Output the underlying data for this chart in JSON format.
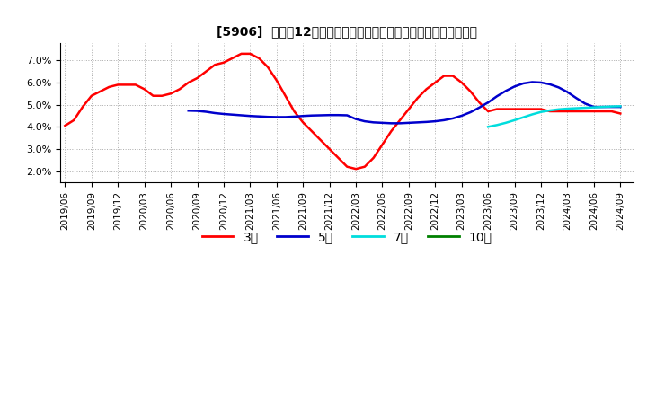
{
  "title": "[5906]  売上高12か月移動合計の対前年同期増減率の平均値の推移",
  "ylim": [
    0.015,
    0.078
  ],
  "yticks": [
    0.02,
    0.03,
    0.04,
    0.05,
    0.06,
    0.07
  ],
  "background_color": "#ffffff",
  "grid_color": "#aaaaaa",
  "series": {
    "3year": {
      "color": "#ff0000",
      "label": "3年",
      "x": [
        0,
        1,
        2,
        3,
        4,
        5,
        6,
        7,
        8,
        9,
        10,
        11,
        12,
        13,
        14,
        15,
        16,
        17,
        18,
        19,
        20,
        21,
        22,
        23,
        24,
        25,
        26,
        27,
        28,
        29,
        30,
        31,
        32,
        33,
        34,
        35,
        36,
        37,
        38,
        39,
        40,
        41,
        42,
        43,
        44,
        45,
        46,
        47,
        48,
        49,
        50,
        51,
        52,
        53,
        54,
        55,
        56,
        57,
        58,
        59,
        60,
        61,
        62,
        63
      ],
      "y": [
        0.0405,
        0.043,
        0.049,
        0.054,
        0.056,
        0.058,
        0.059,
        0.059,
        0.059,
        0.057,
        0.054,
        0.054,
        0.055,
        0.057,
        0.06,
        0.062,
        0.065,
        0.068,
        0.069,
        0.071,
        0.073,
        0.073,
        0.071,
        0.067,
        0.061,
        0.054,
        0.047,
        0.042,
        0.038,
        0.034,
        0.03,
        0.026,
        0.022,
        0.021,
        0.022,
        0.026,
        0.032,
        0.038,
        0.043,
        0.048,
        0.053,
        0.057,
        0.06,
        0.063,
        0.063,
        0.06,
        0.056,
        0.051,
        0.047,
        0.048,
        0.048,
        0.048,
        0.048,
        0.048,
        0.048,
        0.047,
        0.047,
        0.047,
        0.047,
        0.047,
        0.047,
        0.047,
        0.047,
        0.046
      ]
    },
    "5year": {
      "color": "#0000cc",
      "label": "5年",
      "x": [
        14,
        15,
        16,
        17,
        18,
        19,
        20,
        21,
        22,
        23,
        24,
        25,
        26,
        27,
        28,
        29,
        30,
        31,
        32,
        33,
        34,
        35,
        36,
        37,
        38,
        39,
        40,
        41,
        42,
        43,
        44,
        45,
        46,
        47,
        48,
        49,
        50,
        51,
        52,
        53,
        54,
        55,
        56,
        57,
        58,
        59,
        60,
        61,
        62,
        63
      ],
      "y": [
        0.0473,
        0.0472,
        0.0468,
        0.0462,
        0.0458,
        0.0455,
        0.0452,
        0.0449,
        0.0447,
        0.0445,
        0.0444,
        0.0444,
        0.0446,
        0.0449,
        0.0451,
        0.0452,
        0.0453,
        0.0453,
        0.0452,
        0.0435,
        0.0425,
        0.042,
        0.0418,
        0.0416,
        0.0416,
        0.0418,
        0.042,
        0.0422,
        0.0425,
        0.043,
        0.0438,
        0.045,
        0.0466,
        0.0487,
        0.051,
        0.0538,
        0.0562,
        0.0582,
        0.0596,
        0.0602,
        0.06,
        0.0592,
        0.0578,
        0.0557,
        0.053,
        0.0505,
        0.049,
        0.049,
        0.049,
        0.049
      ]
    },
    "7year": {
      "color": "#00dddd",
      "label": "7年",
      "x": [
        48,
        49,
        50,
        51,
        52,
        53,
        54,
        55,
        56,
        57,
        58,
        59,
        60,
        61,
        62,
        63
      ],
      "y": [
        0.04,
        0.0408,
        0.0418,
        0.043,
        0.0443,
        0.0456,
        0.0467,
        0.0474,
        0.0479,
        0.0482,
        0.0484,
        0.0486,
        0.0488,
        0.049,
        0.0492,
        0.0493
      ]
    },
    "10year": {
      "color": "#008000",
      "label": "10年",
      "x": [],
      "y": []
    }
  },
  "xtick_labels": [
    "2019/06",
    "2019/09",
    "2019/12",
    "2020/03",
    "2020/06",
    "2020/09",
    "2020/12",
    "2021/03",
    "2021/06",
    "2021/09",
    "2021/12",
    "2022/03",
    "2022/06",
    "2022/09",
    "2022/12",
    "2023/03",
    "2023/06",
    "2023/09",
    "2023/12",
    "2024/03",
    "2024/06",
    "2024/09"
  ],
  "xtick_positions": [
    0,
    3,
    6,
    9,
    12,
    15,
    18,
    21,
    24,
    27,
    30,
    33,
    36,
    39,
    42,
    45,
    48,
    51,
    54,
    57,
    60,
    63
  ],
  "legend_labels": [
    "3年",
    "5年",
    "7年",
    "10年"
  ],
  "legend_colors": [
    "#ff0000",
    "#0000cc",
    "#00dddd",
    "#008000"
  ]
}
